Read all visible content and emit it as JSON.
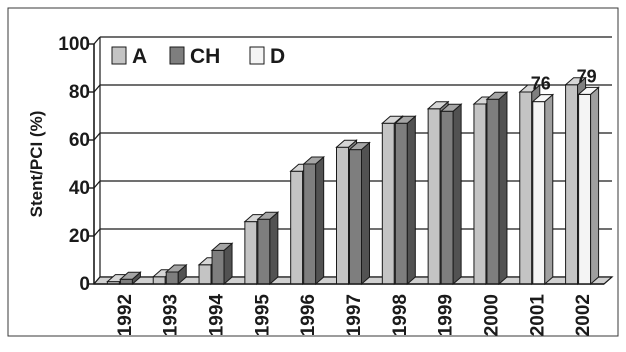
{
  "chart_data": {
    "type": "bar",
    "ylabel": "Stent/PCI (%)",
    "xlabel": "",
    "ylim": [
      0,
      100
    ],
    "yticks": [
      0,
      20,
      40,
      60,
      80,
      100
    ],
    "grid": "horizontal",
    "legend_position": "top-left",
    "categories": [
      "1992",
      "1993",
      "1994",
      "1995",
      "1996",
      "1997",
      "1998",
      "1999",
      "2000",
      "2001",
      "2002"
    ],
    "series": [
      {
        "name": "A",
        "color": "#c4c4c4",
        "values": [
          1,
          3,
          8,
          26,
          47,
          57,
          67,
          73,
          75,
          80,
          83
        ]
      },
      {
        "name": "CH",
        "color": "#7e7e7e",
        "values": [
          2,
          5,
          14,
          27,
          50,
          56,
          67,
          72,
          77,
          null,
          null
        ]
      },
      {
        "name": "D",
        "color": "#f4f4f4",
        "values": [
          null,
          null,
          null,
          null,
          null,
          null,
          null,
          null,
          null,
          76,
          79
        ]
      }
    ],
    "data_labels": [
      {
        "category": "2001",
        "text": "76"
      },
      {
        "category": "2002",
        "text": "79"
      }
    ]
  }
}
